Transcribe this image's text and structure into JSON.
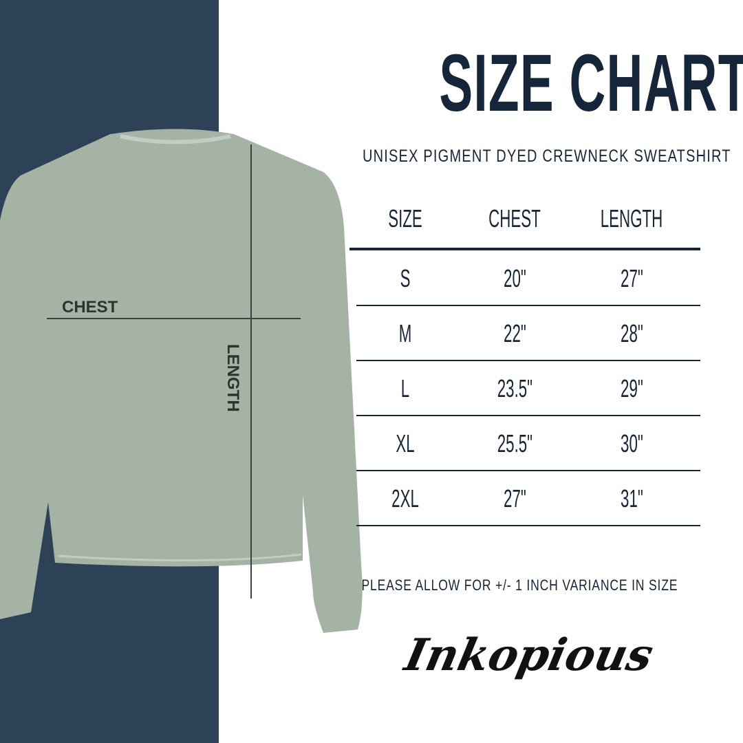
{
  "header": {
    "title": "SIZE CHART",
    "subtitle": "UNISEX PIGMENT DYED CREWNECK SWEATSHIRT"
  },
  "illustration": {
    "chest_label": "CHEST",
    "length_label": "LENGTH",
    "garment_color": "#a5b3a5",
    "panel_color": "#2d4257"
  },
  "table": {
    "headers": [
      "SIZE",
      "CHEST",
      "LENGTH"
    ],
    "rows": [
      [
        "S",
        "20\"",
        "27\""
      ],
      [
        "M",
        "22\"",
        "28\""
      ],
      [
        "L",
        "23.5\"",
        "29\""
      ],
      [
        "XL",
        "25.5\"",
        "30\""
      ],
      [
        "2XL",
        "27\"",
        "31\""
      ]
    ]
  },
  "note": "PLEASE ALLOW FOR +/- 1 INCH VARIANCE IN SIZE",
  "brand": {
    "logo_text": "Inkopious"
  }
}
